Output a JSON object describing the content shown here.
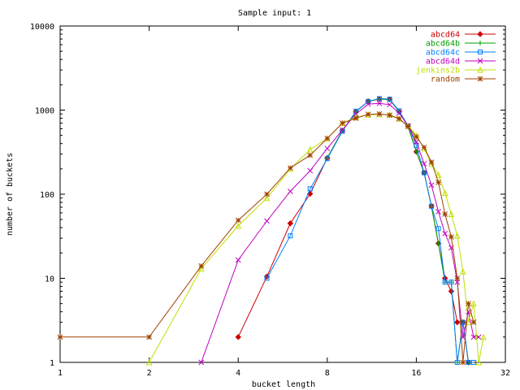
{
  "chart_data": {
    "type": "line",
    "title": "Sample input: 1",
    "xlabel": "bucket length",
    "ylabel": "number of buckets",
    "x_scale": "log2",
    "y_scale": "log10",
    "xlim": [
      1,
      32
    ],
    "ylim": [
      1,
      10000
    ],
    "x_ticks": [
      {
        "value": 1,
        "label": "1"
      },
      {
        "value": 2,
        "label": "2"
      },
      {
        "value": 4,
        "label": "4"
      },
      {
        "value": 8,
        "label": "8"
      },
      {
        "value": 16,
        "label": "16"
      },
      {
        "value": 32,
        "label": "32"
      }
    ],
    "y_ticks": [
      {
        "value": 1,
        "label": "1"
      },
      {
        "value": 10,
        "label": "10"
      },
      {
        "value": 100,
        "label": "100"
      },
      {
        "value": 1000,
        "label": "1000"
      },
      {
        "value": 10000,
        "label": "10000"
      }
    ],
    "legend_position": "top-right",
    "grid": false,
    "series": [
      {
        "name": "abcd64",
        "color": "#cc0000",
        "marker": "diamond",
        "points": [
          [
            4,
            2
          ],
          [
            5,
            10.5
          ],
          [
            6,
            45
          ],
          [
            7,
            101
          ],
          [
            8,
            270
          ],
          [
            9,
            570
          ],
          [
            10,
            960
          ],
          [
            11,
            1270
          ],
          [
            12,
            1350
          ],
          [
            13,
            1340
          ],
          [
            14,
            960
          ],
          [
            15,
            640
          ],
          [
            16,
            320
          ],
          [
            17,
            180
          ],
          [
            18,
            72
          ],
          [
            19,
            26
          ],
          [
            20,
            10
          ],
          [
            21,
            7
          ],
          [
            22,
            3
          ],
          [
            23,
            3
          ],
          [
            24,
            1
          ]
        ]
      },
      {
        "name": "abcd64b",
        "color": "#00a000",
        "marker": "plus",
        "points": [
          [
            8,
            270
          ],
          [
            9,
            570
          ],
          [
            10,
            960
          ],
          [
            11,
            1270
          ],
          [
            12,
            1360
          ],
          [
            13,
            1330
          ],
          [
            14,
            960
          ],
          [
            15,
            640
          ],
          [
            16,
            320
          ],
          [
            17,
            180
          ],
          [
            18,
            72
          ],
          [
            19,
            26
          ],
          [
            20,
            9
          ],
          [
            21,
            9
          ],
          [
            22,
            1
          ],
          [
            23,
            3
          ],
          [
            24,
            1
          ]
        ]
      },
      {
        "name": "abcd64c",
        "color": "#0080ff",
        "marker": "square",
        "points": [
          [
            5,
            10
          ],
          [
            6,
            32
          ],
          [
            7,
            116
          ],
          [
            8,
            265
          ],
          [
            9,
            560
          ],
          [
            10,
            970
          ],
          [
            11,
            1270
          ],
          [
            12,
            1370
          ],
          [
            13,
            1350
          ],
          [
            14,
            980
          ],
          [
            15,
            650
          ],
          [
            16,
            380
          ],
          [
            17,
            180
          ],
          [
            18,
            72
          ],
          [
            19,
            39
          ],
          [
            20,
            9
          ],
          [
            21,
            9
          ],
          [
            22,
            1
          ],
          [
            23,
            3
          ],
          [
            24,
            1
          ],
          [
            25,
            1
          ]
        ]
      },
      {
        "name": "abcd64d",
        "color": "#c000c0",
        "marker": "x",
        "points": [
          [
            3,
            1
          ],
          [
            4,
            16.5
          ],
          [
            5,
            48
          ],
          [
            6,
            108
          ],
          [
            7,
            190
          ],
          [
            8,
            350
          ],
          [
            9,
            580
          ],
          [
            10,
            900
          ],
          [
            11,
            1180
          ],
          [
            12,
            1200
          ],
          [
            13,
            1160
          ],
          [
            14,
            920
          ],
          [
            15,
            650
          ],
          [
            16,
            420
          ],
          [
            17,
            230
          ],
          [
            18,
            128
          ],
          [
            19,
            62
          ],
          [
            20,
            34
          ],
          [
            21,
            23
          ],
          [
            22,
            9
          ],
          [
            23,
            2
          ],
          [
            24,
            4
          ],
          [
            25,
            2
          ],
          [
            26,
            2
          ]
        ]
      },
      {
        "name": "jenkins2b",
        "color": "#c0e000",
        "marker": "triangle",
        "points": [
          [
            2,
            1
          ],
          [
            3,
            13
          ],
          [
            4,
            42
          ],
          [
            5,
            90
          ],
          [
            6,
            200
          ],
          [
            7,
            340
          ],
          [
            8,
            460
          ],
          [
            9,
            700
          ],
          [
            10,
            820
          ],
          [
            11,
            880
          ],
          [
            12,
            890
          ],
          [
            13,
            880
          ],
          [
            14,
            790
          ],
          [
            15,
            650
          ],
          [
            16,
            500
          ],
          [
            17,
            350
          ],
          [
            18,
            230
          ],
          [
            19,
            170
          ],
          [
            20,
            103
          ],
          [
            21,
            58
          ],
          [
            22,
            32
          ],
          [
            23,
            12
          ],
          [
            24,
            3
          ],
          [
            25,
            5
          ],
          [
            26,
            1
          ],
          [
            27,
            2
          ]
        ]
      },
      {
        "name": "random",
        "color": "#a04000",
        "marker": "asterisk",
        "points": [
          [
            1,
            2
          ],
          [
            2,
            2
          ],
          [
            3,
            14
          ],
          [
            4,
            49
          ],
          [
            5,
            100
          ],
          [
            6,
            205
          ],
          [
            7,
            290
          ],
          [
            8,
            460
          ],
          [
            9,
            700
          ],
          [
            10,
            800
          ],
          [
            11,
            890
          ],
          [
            12,
            900
          ],
          [
            13,
            870
          ],
          [
            14,
            790
          ],
          [
            15,
            640
          ],
          [
            16,
            480
          ],
          [
            17,
            360
          ],
          [
            18,
            240
          ],
          [
            19,
            138
          ],
          [
            20,
            58
          ],
          [
            21,
            31
          ],
          [
            22,
            10
          ],
          [
            23,
            1
          ],
          [
            24,
            5
          ],
          [
            25,
            3
          ]
        ]
      }
    ]
  }
}
